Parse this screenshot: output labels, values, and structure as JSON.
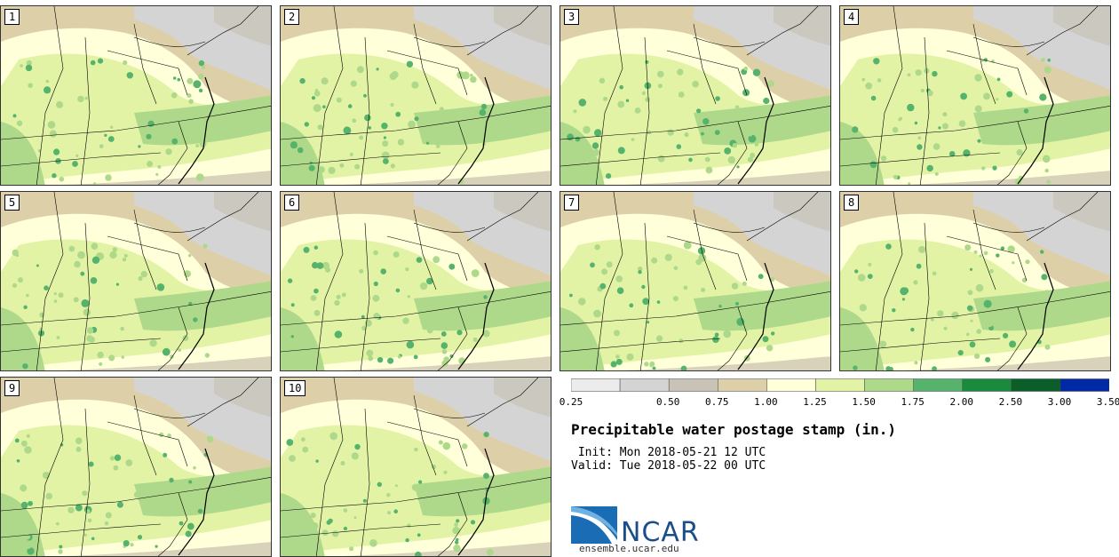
{
  "title": "Precipitable water postage stamp (in.)",
  "init": " Init: Mon 2018-05-21 12 UTC",
  "valid": "Valid: Tue 2018-05-22 00 UTC",
  "panels": [
    "1",
    "2",
    "3",
    "4",
    "5",
    "6",
    "7",
    "8",
    "9",
    "10"
  ],
  "colorbar": {
    "ticks": [
      "0.25",
      "0.50",
      "0.75",
      "1.00",
      "1.25",
      "1.50",
      "1.75",
      "2.00",
      "2.50",
      "3.00",
      "3.50"
    ],
    "colors": [
      "#ececec",
      "#d4d4d4",
      "#c8c3b6",
      "#ddd0a8",
      "#ffffd9",
      "#e2f3a6",
      "#aed88a",
      "#56b36b",
      "#1a8a3d",
      "#0b5e2a",
      "#0029a6"
    ]
  },
  "logo": {
    "name": "NCAR",
    "url": "ensemble.ucar.edu"
  }
}
